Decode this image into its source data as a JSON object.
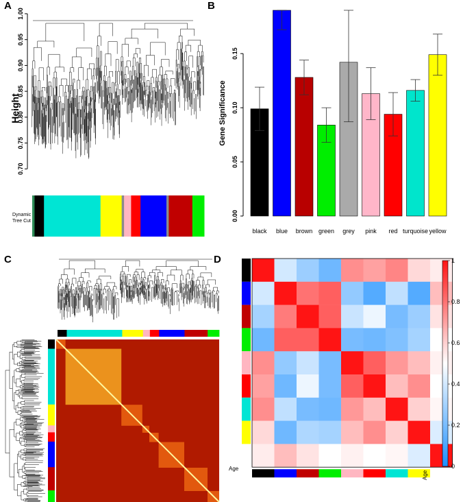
{
  "panels": {
    "a": {
      "label": "A",
      "ylabel": "Height",
      "strip_label_line1": "Dynamic",
      "strip_label_line2": "Tree Cut"
    },
    "b": {
      "label": "B"
    },
    "c": {
      "label": "C"
    },
    "d": {
      "label": "D",
      "row_label": "Age",
      "col_label": "Age"
    }
  },
  "chart_data": [
    {
      "id": "panel-a",
      "type": "dendrogram",
      "ylabel": "Height",
      "ylim": [
        0.65,
        1.0
      ],
      "yticks": [
        "0.70",
        "0.75",
        "0.80",
        "0.85",
        "0.90",
        "0.95",
        "1.00"
      ],
      "color_strip_label": [
        "Dynamic",
        "Tree Cut"
      ],
      "module_strip": [
        {
          "color": "#2e8b57",
          "weight": 1
        },
        {
          "color": "#000000",
          "weight": 4
        },
        {
          "color": "#00e5d4",
          "weight": 24
        },
        {
          "color": "#ffff00",
          "weight": 9
        },
        {
          "color": "#8b8b8b",
          "weight": 1
        },
        {
          "color": "#ffb6c1",
          "weight": 3
        },
        {
          "color": "#ff0000",
          "weight": 4
        },
        {
          "color": "#0000ff",
          "weight": 11
        },
        {
          "color": "#8b8b8b",
          "weight": 1
        },
        {
          "color": "#c00000",
          "weight": 10
        },
        {
          "color": "#00ee00",
          "weight": 5
        }
      ]
    },
    {
      "id": "panel-b",
      "type": "bar",
      "ylabel": "Gene Significance",
      "ylim": [
        0,
        0.19
      ],
      "yticks": [
        "0.00",
        "0.05",
        "0.10",
        "0.15"
      ],
      "categories": [
        "black",
        "blue",
        "brown",
        "green",
        "grey",
        "pink",
        "red",
        "turquoise",
        "yellow"
      ],
      "values": [
        0.099,
        0.19,
        0.128,
        0.084,
        0.142,
        0.113,
        0.094,
        0.116,
        0.149
      ],
      "errors": [
        0.02,
        0.018,
        0.016,
        0.016,
        0.055,
        0.024,
        0.02,
        0.01,
        0.019
      ],
      "colors": [
        "#000000",
        "#0000ff",
        "#b80000",
        "#00ee00",
        "#aaaaaa",
        "#ffb6c9",
        "#ff0000",
        "#00e5cc",
        "#ffff00"
      ]
    },
    {
      "id": "panel-c",
      "type": "heatmap",
      "title": "",
      "module_strip_colors": [
        "#000000",
        "#00e5d4",
        "#ffff00",
        "#ffb6c1",
        "#ff0000",
        "#0000ff",
        "#c00000",
        "#00ee00"
      ],
      "block_weights": [
        4,
        24,
        9,
        3,
        4,
        11,
        10,
        5
      ]
    },
    {
      "id": "panel-d",
      "type": "heatmap",
      "row_colors": [
        "#000000",
        "#0000ff",
        "#c00000",
        "#00ee00",
        "#ffb6c1",
        "#ff0000",
        "#00e5d4",
        "#ffff00"
      ],
      "row_extra_label": "Age",
      "col_extra_label": "Age",
      "colorbar_ticks": [
        "0",
        "0.2",
        "0.4",
        "0.6",
        "0.8",
        "1"
      ],
      "matrix": [
        [
          1.0,
          0.4,
          0.28,
          0.18,
          0.74,
          0.7,
          0.76,
          0.58,
          0.54
        ],
        [
          0.4,
          1.0,
          0.8,
          0.84,
          0.26,
          0.12,
          0.36,
          0.12,
          0.64
        ],
        [
          0.3,
          0.78,
          1.0,
          0.84,
          0.38,
          0.46,
          0.2,
          0.28,
          0.56
        ],
        [
          0.18,
          0.84,
          0.84,
          1.0,
          0.2,
          0.18,
          0.22,
          0.3,
          0.5
        ],
        [
          0.74,
          0.26,
          0.38,
          0.2,
          1.0,
          0.84,
          0.72,
          0.64,
          0.53
        ],
        [
          0.7,
          0.18,
          0.46,
          0.2,
          0.84,
          1.0,
          0.64,
          0.74,
          0.5
        ],
        [
          0.74,
          0.36,
          0.2,
          0.18,
          0.72,
          0.64,
          1.0,
          0.6,
          0.52
        ],
        [
          0.58,
          0.18,
          0.32,
          0.3,
          0.64,
          0.74,
          0.6,
          1.0,
          0.42
        ],
        [
          0.54,
          0.64,
          0.56,
          0.5,
          0.53,
          0.5,
          0.52,
          0.42,
          1.0
        ]
      ]
    }
  ]
}
